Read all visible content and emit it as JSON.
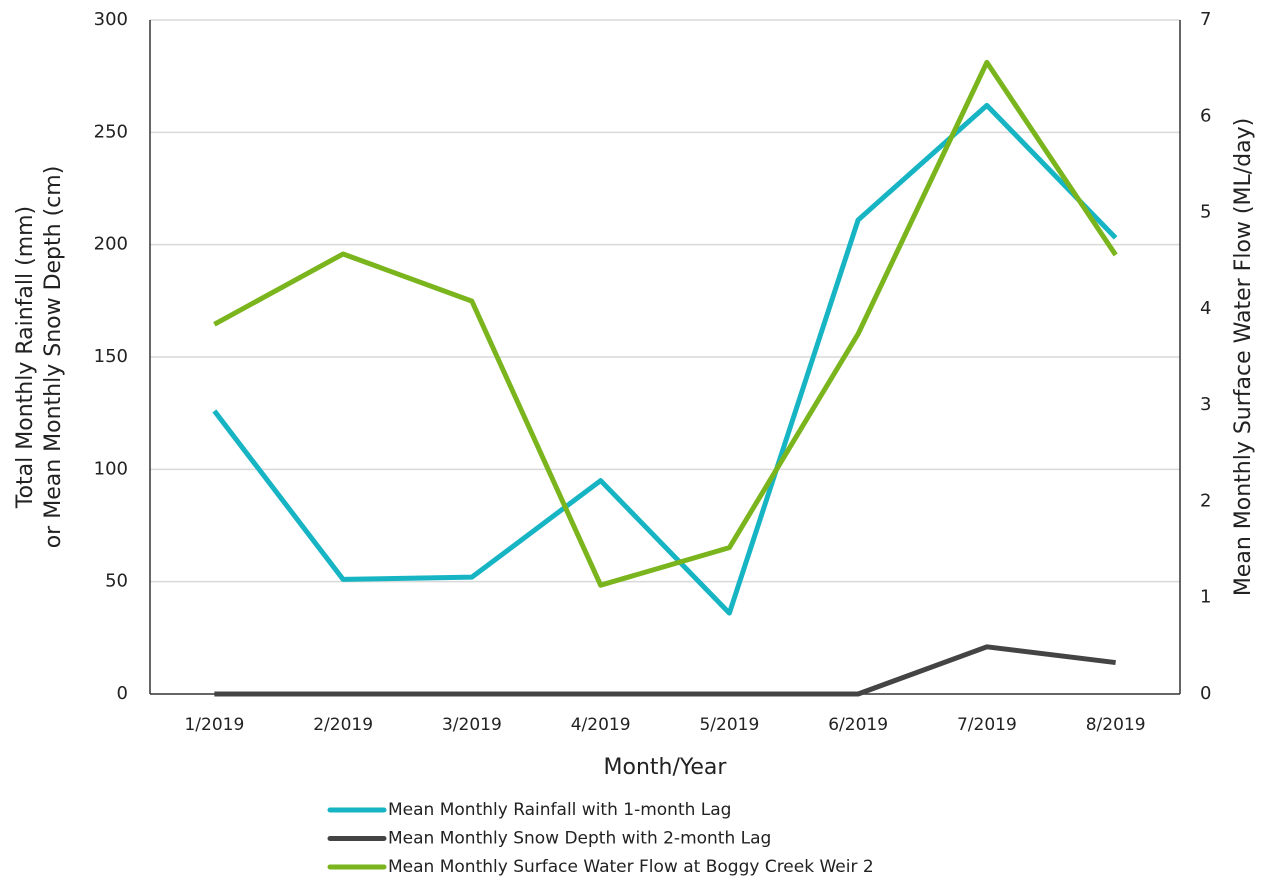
{
  "chart_data": {
    "type": "line",
    "categories": [
      "1/2019",
      "2/2019",
      "3/2019",
      "4/2019",
      "5/2019",
      "6/2019",
      "7/2019",
      "8/2019"
    ],
    "x_label": "Month/Year",
    "y_label": [
      "Total Monthly Rainfall (mm)",
      "or Mean Monthly Snow Depth (cm)"
    ],
    "y2_label": "Mean Monthly Surface Water Flow (ML/day)",
    "ylim": [
      0,
      300
    ],
    "yticks": [
      0,
      50,
      100,
      150,
      200,
      250,
      300
    ],
    "y2lim": [
      0,
      7
    ],
    "y2ticks": [
      0,
      1,
      2,
      3,
      4,
      5,
      6,
      7
    ],
    "grid": true,
    "series": [
      {
        "name": "Mean Monthly Rainfall with 1-month Lag",
        "color": "#17b5c4",
        "values": [
          126,
          51,
          52,
          95,
          36,
          211,
          262,
          203
        ]
      },
      {
        "name": "Mean Monthly Snow Depth with 2-month Lag",
        "color": "#444444",
        "values": [
          0,
          0,
          0,
          0,
          0,
          0,
          21,
          14
        ]
      },
      {
        "name": "Mean Monthly Surface Water Flow at Boggy Creek Weir 2",
        "color": "#7ab51d",
        "axis": "y2",
        "values": [
          3.84,
          4.57,
          4.08,
          1.13,
          1.52,
          3.74,
          6.56,
          4.56
        ]
      }
    ]
  }
}
